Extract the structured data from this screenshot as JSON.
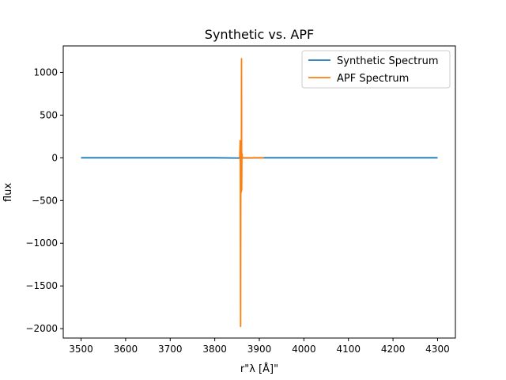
{
  "chart_data": {
    "type": "line",
    "title": "Synthetic vs. APF",
    "xlabel": "r\"λ [Å]\"",
    "ylabel": "flux",
    "xlim": [
      3460,
      4340
    ],
    "ylim": [
      2150,
      -2150
    ],
    "ylim_note": "",
    "x_ticks": [
      3500,
      3600,
      3700,
      3800,
      3900,
      4000,
      4100,
      4200,
      4300
    ],
    "y_ticks": [
      1000,
      500,
      0,
      -500,
      -1000,
      -1500,
      -2000
    ],
    "grid": false,
    "legend_position": "upper right",
    "series": [
      {
        "name": "Synthetic Spectrum",
        "color": "#1f77b4",
        "x": [
          3500,
          3800,
          3850,
          3900,
          4300
        ],
        "y": [
          0,
          0,
          -2,
          0,
          0
        ]
      },
      {
        "name": "APF Spectrum",
        "color": "#ff7f0e",
        "x": [
          3856,
          3857,
          3857.5,
          3858,
          3858.5,
          3859,
          3859.5,
          3860,
          3860.5,
          3861,
          3862,
          3865,
          3880,
          3910
        ],
        "y": [
          0,
          200,
          -100,
          -1975,
          100,
          0,
          -400,
          1160,
          -380,
          50,
          0,
          0,
          0,
          0
        ]
      }
    ]
  }
}
